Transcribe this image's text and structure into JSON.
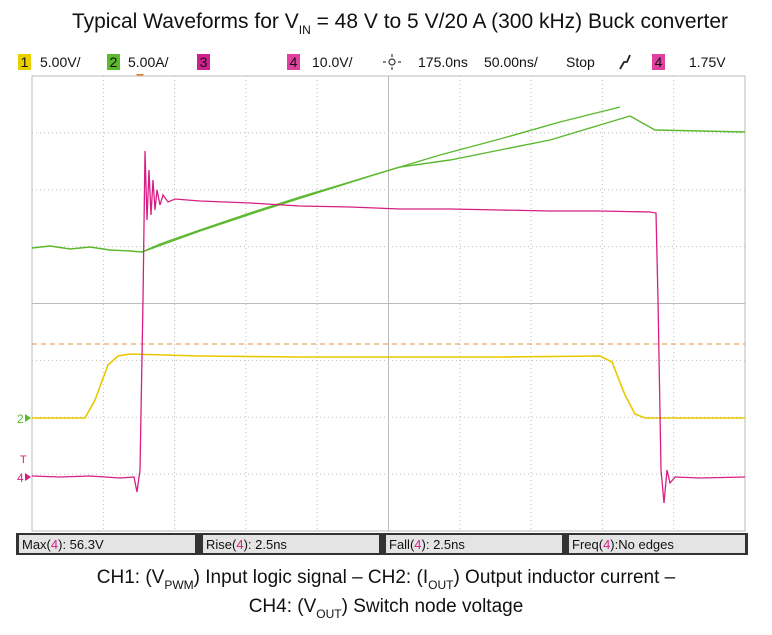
{
  "title": {
    "prefix": "Typical Waveforms for V",
    "sub": "IN",
    "suffix": " = 48 V to 5 V/20 A (300 kHz) Buck converter"
  },
  "status_bar": {
    "ch1": "1",
    "ch1_scale": "5.00V/",
    "ch2": "2",
    "ch2_scale": "5.00A/",
    "ch3": "3",
    "ch4": "4",
    "ch4_scale": "10.0V/",
    "delay": "175.0ns",
    "timebase": "50.00ns/",
    "state": "Stop",
    "trigger_source": "4",
    "trigger_level": "1.75V"
  },
  "markers": {
    "ch2": "2",
    "trigger": "T",
    "ch4": "4"
  },
  "measurements": [
    {
      "label": "Max(",
      "channel": "4",
      "value": "): 56.3V"
    },
    {
      "label": "Rise(",
      "channel": "4",
      "value": "): 2.5ns"
    },
    {
      "label": "Fall(",
      "channel": "4",
      "value": "): 2.5ns"
    },
    {
      "label": "Freq(",
      "channel": "4",
      "value": "):No edges"
    }
  ],
  "caption": {
    "line1": [
      "CH1: (V",
      "PWM",
      ") Input logic signal – CH2: (I",
      "OUT",
      ") Output inductor current –"
    ],
    "line2": [
      "CH4: (V",
      "OUT",
      ") Switch node voltage"
    ]
  }
}
